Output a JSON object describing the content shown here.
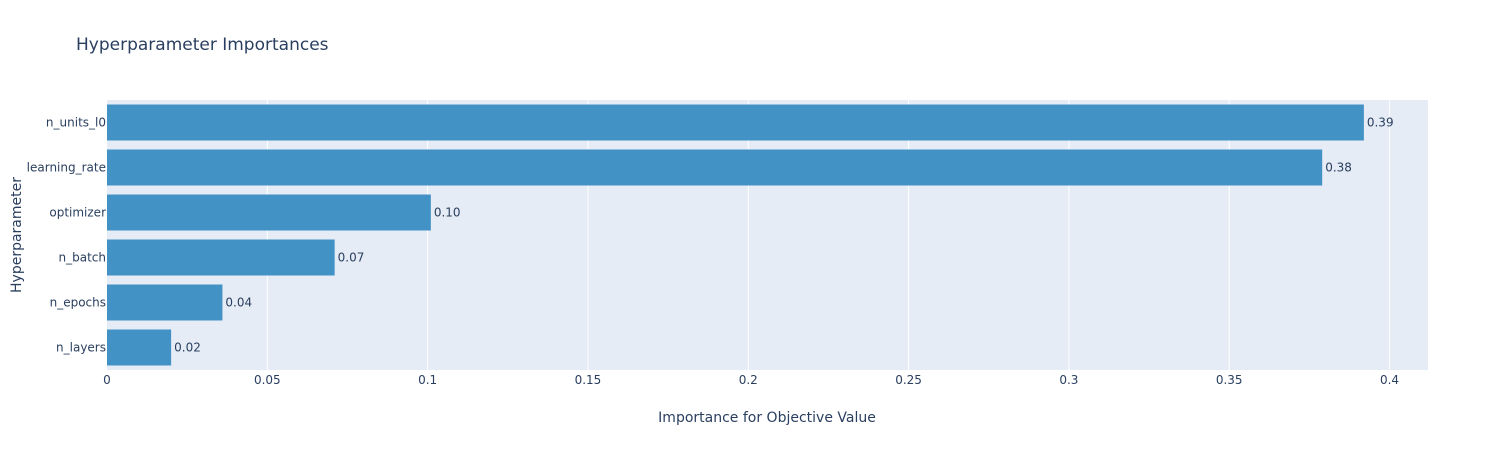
{
  "chart_data": {
    "type": "bar",
    "orientation": "horizontal",
    "title": "Hyperparameter Importances",
    "xlabel": "Importance for Objective Value",
    "ylabel": "Hyperparameter",
    "categories": [
      "n_units_l0",
      "learning_rate",
      "optimizer",
      "n_batch",
      "n_epochs",
      "n_layers"
    ],
    "values": [
      0.392,
      0.379,
      0.101,
      0.071,
      0.036,
      0.02
    ],
    "value_labels": [
      "0.39",
      "0.38",
      "0.10",
      "0.07",
      "0.04",
      "0.02"
    ],
    "xlim": [
      0,
      0.412
    ],
    "x_ticks": [
      0,
      0.05,
      0.1,
      0.15,
      0.2,
      0.25,
      0.3,
      0.35,
      0.4
    ],
    "x_tick_labels": [
      "0",
      "0.05",
      "0.1",
      "0.15",
      "0.2",
      "0.25",
      "0.3",
      "0.35",
      "0.4"
    ],
    "grid": true,
    "colors": {
      "bar": "#4292c6",
      "plot_bg": "#e5ecf6",
      "grid": "#ffffff",
      "text": "#2a3f5f"
    }
  }
}
